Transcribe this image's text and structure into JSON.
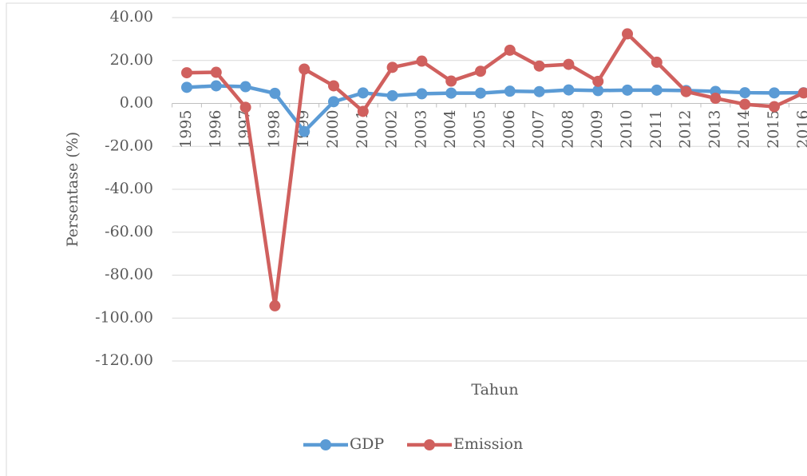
{
  "chart_data": {
    "type": "line",
    "x_label": "Tahun",
    "y_label": "Persentase (%)",
    "categories": [
      "1995",
      "1996",
      "1997",
      "1998",
      "1999",
      "2000",
      "2001",
      "2002",
      "2003",
      "2004",
      "2005",
      "2006",
      "2007",
      "2008",
      "2009",
      "2010",
      "2011",
      "2012",
      "2013",
      "2014",
      "2015",
      "2016"
    ],
    "series": [
      {
        "name": "GDP",
        "color": "#5b9bd5",
        "values": [
          7.5,
          8.2,
          7.8,
          4.7,
          -13.1,
          0.8,
          4.9,
          3.6,
          4.5,
          4.8,
          4.8,
          5.7,
          5.5,
          6.3,
          6.0,
          6.2,
          6.2,
          6.0,
          5.6,
          5.0,
          4.9,
          5.0
        ]
      },
      {
        "name": "Emission",
        "color": "#d0605e",
        "values": [
          14.3,
          14.5,
          -1.8,
          -94.3,
          16.0,
          8.2,
          -3.7,
          16.8,
          19.7,
          10.4,
          15.0,
          24.8,
          17.4,
          18.2,
          10.3,
          32.4,
          19.2,
          5.5,
          2.4,
          -0.4,
          -1.5,
          4.9
        ]
      }
    ],
    "ylim": [
      -120,
      40
    ],
    "yticks": [
      {
        "value": -120,
        "label": "-120.00"
      },
      {
        "value": -100,
        "label": "-100.00"
      },
      {
        "value": -80,
        "label": "-80.00"
      },
      {
        "value": -60,
        "label": "-60.00"
      },
      {
        "value": -40,
        "label": "-40.00"
      },
      {
        "value": -20,
        "label": "-20.00"
      },
      {
        "value": 0,
        "label": "0.00"
      },
      {
        "value": 20,
        "label": "20.00"
      },
      {
        "value": 40,
        "label": "40.00"
      }
    ],
    "grid": true,
    "legend": "bottom"
  }
}
